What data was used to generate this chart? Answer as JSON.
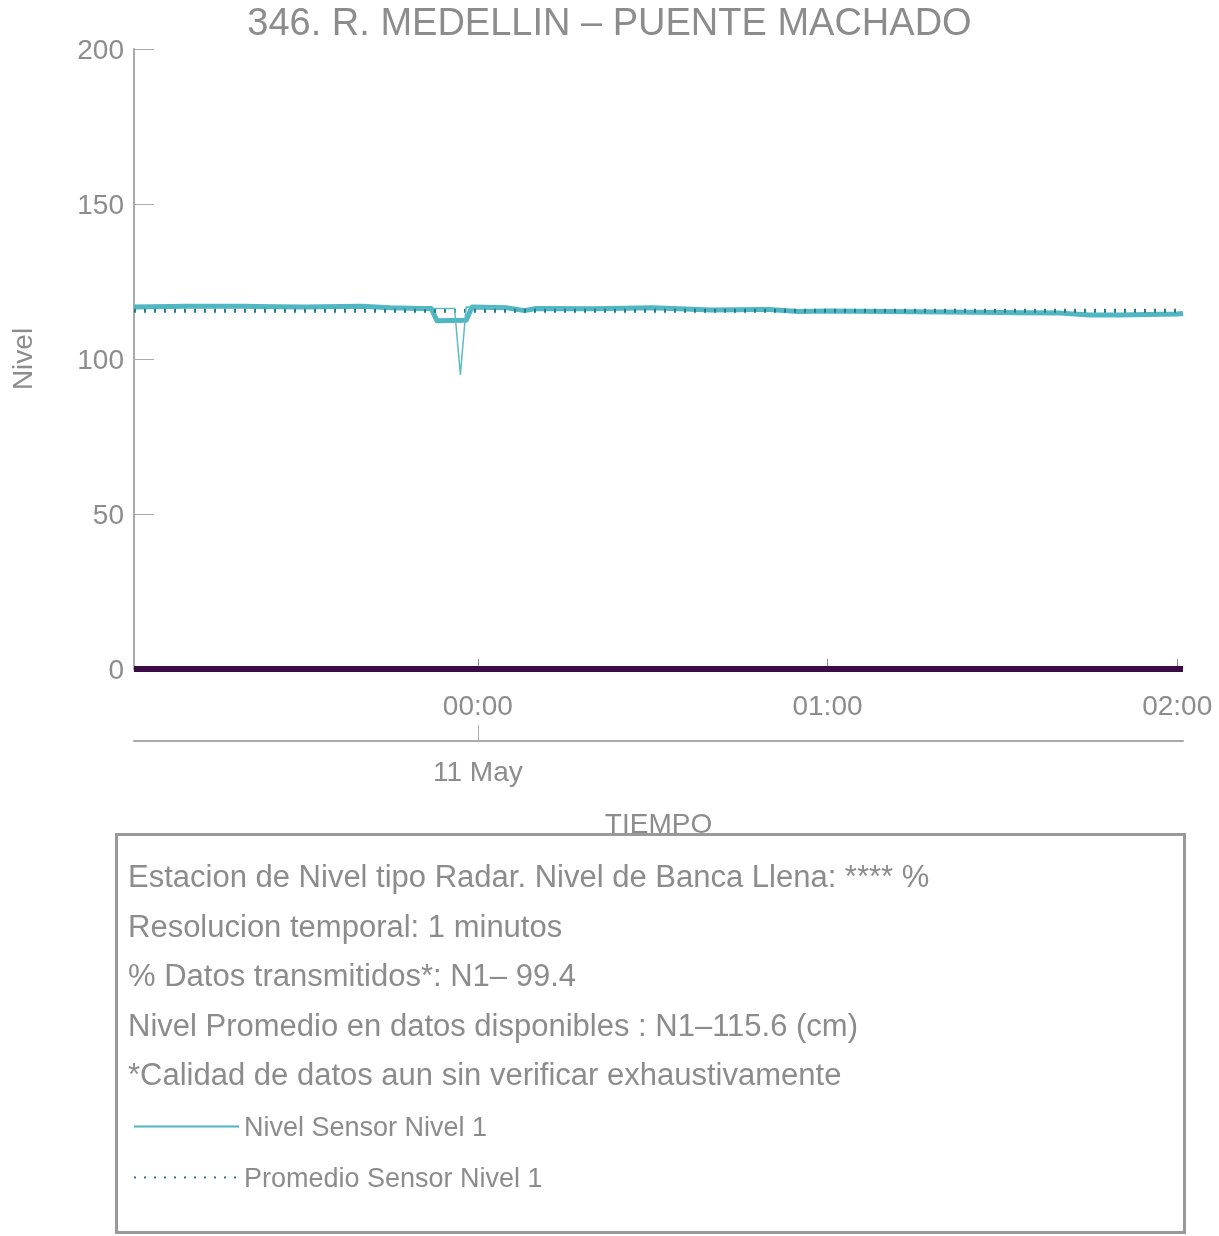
{
  "chart_data": {
    "type": "line",
    "title": "346. R. MEDELLIN – PUENTE MACHADO",
    "xlabel": "TIEMPO",
    "ylabel": "Nivel",
    "xlim": [
      "--05-10T23:01",
      "--05-11T02:01"
    ],
    "xticks": [
      {
        "value": "--05-11T00:00",
        "label": "00:00"
      },
      {
        "value": "--05-11T01:00",
        "label": "01:00"
      },
      {
        "value": "--05-11T02:00",
        "label": "02:00"
      }
    ],
    "ylim": [
      0,
      200
    ],
    "yticks": [
      0,
      50,
      100,
      150,
      200
    ],
    "grid": false,
    "legend": "bottom",
    "marker": "none",
    "series": [
      {
        "name": "Nivel Sensor Nivel 1",
        "color": "#4fb6c2",
        "line_style": "solid",
        "x": [
          "--05-10T23:01",
          "--05-10T23:10",
          "--05-10T23:20",
          "--05-10T23:30",
          "--05-10T23:40",
          "--05-10T23:45",
          "--05-10T23:50",
          "--05-10T23:52",
          "--05-10T23:53",
          "--05-10T23:58",
          "--05-10T23:59",
          "--05-11T00:05",
          "--05-11T00:08",
          "--05-11T00:10",
          "--05-11T00:20",
          "--05-11T00:30",
          "--05-11T00:40",
          "--05-11T00:50",
          "--05-11T00:55",
          "--05-11T01:00",
          "--05-11T01:10",
          "--05-11T01:20",
          "--05-11T01:30",
          "--05-11T01:40",
          "--05-11T01:45",
          "--05-11T01:50",
          "--05-11T02:00",
          "--05-11T02:01"
        ],
        "values": [
          116.8,
          117.0,
          117.0,
          116.8,
          117.0,
          116.5,
          116.3,
          116.3,
          112.3,
          112.5,
          116.8,
          116.5,
          115.6,
          116.3,
          116.2,
          116.5,
          115.8,
          116.0,
          115.3,
          115.5,
          115.3,
          115.2,
          115.0,
          114.8,
          114.2,
          114.2,
          114.5,
          114.7
        ]
      },
      {
        "color": "#5cbcc6",
        "line_style": "solid",
        "x": [
          "--05-10T23:50",
          "--05-10T23:56",
          "--05-10T23:57",
          "--05-10T23:58",
          "--05-11T00:05"
        ],
        "values": [
          116.3,
          116.3,
          95,
          116.8,
          116.5
        ]
      },
      {
        "color": "#3a0b45",
        "line_style": "solid",
        "x": [
          "--05-10T23:01",
          "--05-11T02:01"
        ],
        "values": [
          0,
          0
        ]
      },
      {
        "name": "Promedio Sensor Nivel 1",
        "color": "#2b7a8c",
        "line_style": "dotted",
        "x": [
          "--05-10T23:01",
          "--05-11T02:01"
        ],
        "values": [
          115.6,
          115.6
        ]
      }
    ],
    "annotations": [
      "11 May",
      "Estacion de Nivel tipo Radar. Nivel de Banca Llena: **** %",
      "Resolucion temporal: 1 minutos",
      "% Datos transmitidos*: N1– 99.4",
      "Nivel Promedio en datos disponibles : N1–115.6 (cm)",
      "*Calidad de datos aun sin verificar exhaustivamente"
    ]
  }
}
